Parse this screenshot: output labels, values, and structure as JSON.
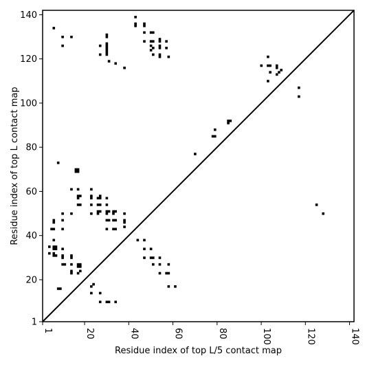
{
  "chart_data": {
    "type": "scatter",
    "title": "",
    "xlabel": "Residue index of top L/5 contact map",
    "ylabel": "Residue index of top L contact map",
    "xlim": [
      1,
      142
    ],
    "ylim": [
      1,
      142
    ],
    "x_ticks": [
      1,
      20,
      40,
      60,
      80,
      100,
      120,
      140
    ],
    "y_ticks": [
      1,
      20,
      40,
      60,
      80,
      100,
      120,
      140
    ],
    "x_tick_labels": [
      "1",
      "20",
      "40",
      "60",
      "80",
      "100",
      "120",
      "140"
    ],
    "y_tick_labels": [
      "1",
      "20",
      "40",
      "60",
      "80",
      "100",
      "120",
      "140"
    ],
    "grid": false,
    "diagonal_line": [
      [
        1,
        1
      ],
      [
        142,
        142
      ]
    ],
    "marker_color": "#000000",
    "upper_points": [
      [
        6,
        134
      ],
      [
        10,
        130
      ],
      [
        14,
        130
      ],
      [
        10,
        126
      ],
      [
        30,
        131
      ],
      [
        30,
        130
      ],
      [
        43,
        139
      ],
      [
        43,
        136
      ],
      [
        43,
        135
      ],
      [
        47,
        136
      ],
      [
        47,
        135
      ],
      [
        27,
        126
      ],
      [
        30,
        127
      ],
      [
        30,
        126
      ],
      [
        30,
        125
      ],
      [
        30,
        124
      ],
      [
        27,
        122
      ],
      [
        30,
        123
      ],
      [
        30,
        122
      ],
      [
        31,
        119
      ],
      [
        34,
        118
      ],
      [
        38,
        116
      ],
      [
        47,
        132
      ],
      [
        50,
        132
      ],
      [
        51,
        132
      ],
      [
        47,
        128
      ],
      [
        50,
        128
      ],
      [
        51,
        128
      ],
      [
        54,
        129
      ],
      [
        54,
        128
      ],
      [
        57,
        128
      ],
      [
        50,
        126
      ],
      [
        51,
        125
      ],
      [
        50,
        124
      ],
      [
        54,
        126
      ],
      [
        54,
        125
      ],
      [
        57,
        125
      ],
      [
        51,
        122
      ],
      [
        54,
        122
      ],
      [
        54,
        121
      ],
      [
        58,
        121
      ],
      [
        70,
        77
      ],
      [
        78,
        85
      ],
      [
        79,
        85
      ],
      [
        79,
        88
      ],
      [
        85,
        92
      ],
      [
        86,
        92
      ],
      [
        85,
        91
      ],
      [
        103,
        121
      ],
      [
        100,
        117
      ],
      [
        103,
        117
      ],
      [
        104,
        117
      ],
      [
        107,
        117
      ],
      [
        107,
        116
      ],
      [
        109,
        115
      ],
      [
        104,
        114
      ],
      [
        108,
        114
      ],
      [
        107,
        113
      ],
      [
        103,
        110
      ],
      [
        117,
        107
      ],
      [
        117,
        103
      ],
      [
        125,
        54
      ],
      [
        128,
        50
      ]
    ],
    "lower_points": [
      [
        8,
        73
      ],
      [
        16,
        70
      ],
      [
        17,
        70
      ],
      [
        16,
        69
      ],
      [
        17,
        69
      ],
      [
        14,
        61
      ],
      [
        17,
        61
      ],
      [
        23,
        61
      ],
      [
        17,
        58
      ],
      [
        18,
        58
      ],
      [
        17,
        57
      ],
      [
        17,
        54
      ],
      [
        18,
        54
      ],
      [
        23,
        58
      ],
      [
        23,
        57
      ],
      [
        26,
        57
      ],
      [
        27,
        58
      ],
      [
        27,
        57
      ],
      [
        30,
        57
      ],
      [
        23,
        54
      ],
      [
        26,
        54
      ],
      [
        27,
        54
      ],
      [
        30,
        54
      ],
      [
        26,
        51
      ],
      [
        27,
        51
      ],
      [
        30,
        51
      ],
      [
        31,
        51
      ],
      [
        33,
        51
      ],
      [
        34,
        51
      ],
      [
        23,
        50
      ],
      [
        26,
        50
      ],
      [
        30,
        50
      ],
      [
        33,
        50
      ],
      [
        38,
        50
      ],
      [
        14,
        50
      ],
      [
        10,
        50
      ],
      [
        10,
        47
      ],
      [
        30,
        47
      ],
      [
        31,
        47
      ],
      [
        33,
        47
      ],
      [
        34,
        47
      ],
      [
        38,
        47
      ],
      [
        38,
        46
      ],
      [
        38,
        44
      ],
      [
        30,
        43
      ],
      [
        33,
        43
      ],
      [
        34,
        43
      ],
      [
        6,
        47
      ],
      [
        6,
        46
      ],
      [
        5,
        43
      ],
      [
        6,
        43
      ],
      [
        10,
        43
      ],
      [
        6,
        38
      ],
      [
        44,
        38
      ],
      [
        47,
        38
      ],
      [
        4,
        35
      ],
      [
        6,
        35
      ],
      [
        7,
        35
      ],
      [
        6,
        34
      ],
      [
        7,
        34
      ],
      [
        10,
        34
      ],
      [
        47,
        34
      ],
      [
        50,
        34
      ],
      [
        4,
        32
      ],
      [
        6,
        32
      ],
      [
        6,
        31
      ],
      [
        7,
        31
      ],
      [
        10,
        31
      ],
      [
        10,
        30
      ],
      [
        14,
        31
      ],
      [
        14,
        30
      ],
      [
        47,
        30
      ],
      [
        50,
        30
      ],
      [
        51,
        30
      ],
      [
        54,
        30
      ],
      [
        10,
        27
      ],
      [
        11,
        27
      ],
      [
        14,
        27
      ],
      [
        17,
        27
      ],
      [
        18,
        27
      ],
      [
        17,
        26
      ],
      [
        18,
        26
      ],
      [
        51,
        27
      ],
      [
        54,
        27
      ],
      [
        58,
        27
      ],
      [
        14,
        24
      ],
      [
        14,
        23
      ],
      [
        17,
        23
      ],
      [
        18,
        24
      ],
      [
        54,
        23
      ],
      [
        57,
        23
      ],
      [
        58,
        23
      ],
      [
        23,
        17
      ],
      [
        24,
        18
      ],
      [
        58,
        17
      ],
      [
        61,
        17
      ],
      [
        8,
        16
      ],
      [
        9,
        16
      ],
      [
        23,
        14
      ],
      [
        27,
        14
      ],
      [
        27,
        10
      ],
      [
        30,
        10
      ],
      [
        31,
        10
      ],
      [
        34,
        10
      ]
    ]
  }
}
